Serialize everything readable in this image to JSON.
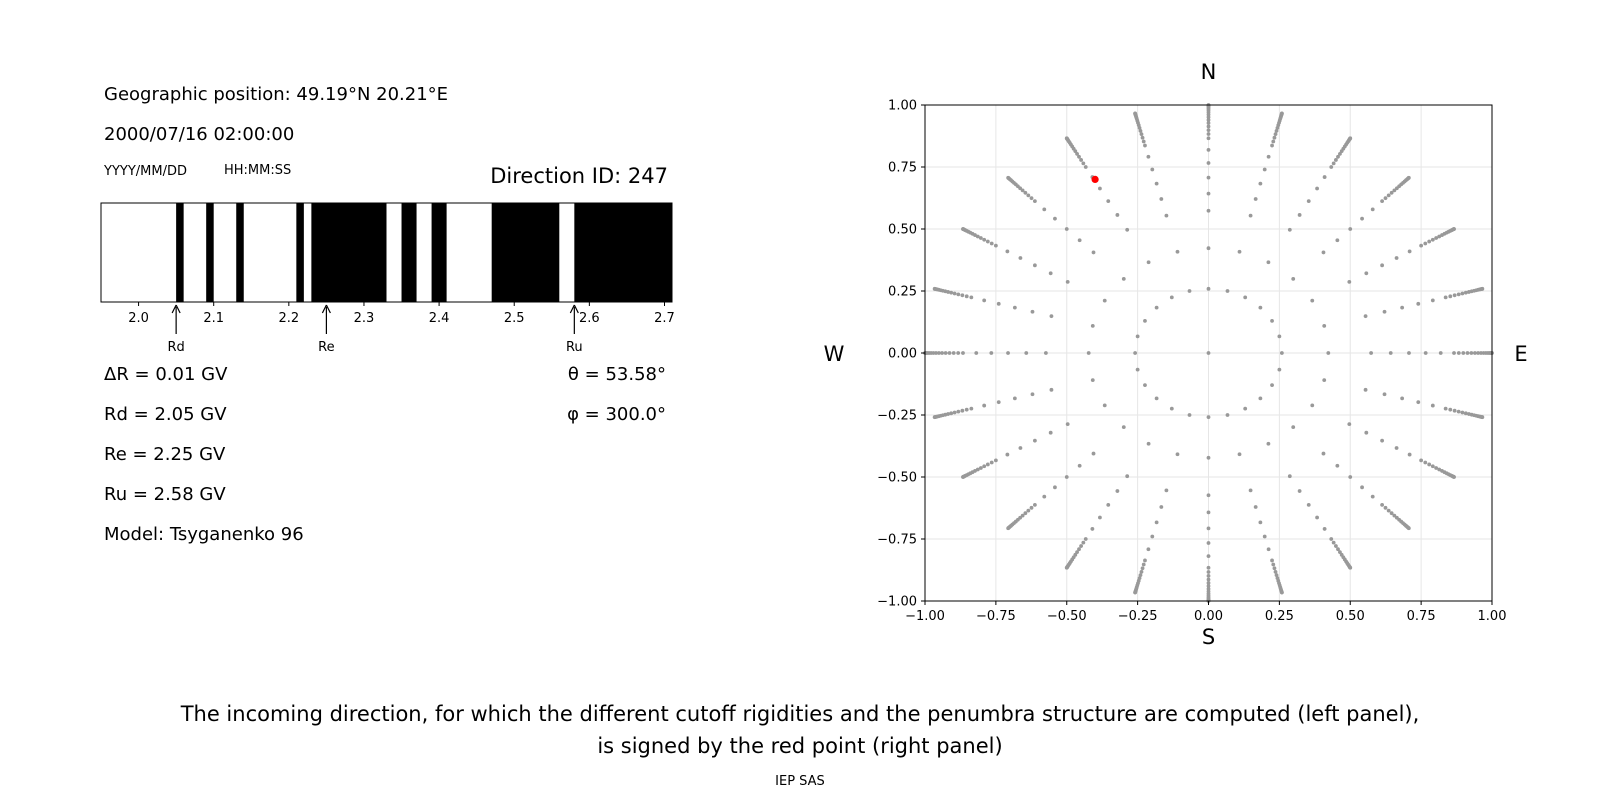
{
  "header": {
    "position": "Geographic position: 49.19°N 20.21°E",
    "datetime": "2000/07/16 02:00:00",
    "date_format": "YYYY/MM/DD",
    "time_format": "HH:MM:SS",
    "direction_id": "Direction ID: 247"
  },
  "params": {
    "delta_r": "ΔR = 0.01 GV",
    "rd": "Rd = 2.05 GV",
    "re": "Re = 2.25 GV",
    "ru": "Ru = 2.58 GV",
    "model": "Model: Tsyganenko 96",
    "theta": "θ = 53.58°",
    "phi": "φ = 300.0°"
  },
  "compass": {
    "north": "N",
    "south": "S",
    "west": "W",
    "east": "E"
  },
  "caption": {
    "line1": "The incoming direction, for which the different cutoff rigidities and the penumbra structure are computed (left panel),",
    "line2": "is signed by the red point (right panel)"
  },
  "footer": "IEP SAS",
  "colors": {
    "allowed": "#ffffff",
    "forbidden": "#000000",
    "grid_point": "#999999",
    "selected": "#ff0000"
  },
  "chart_data": [
    {
      "type": "bar",
      "description_role": "penumbra",
      "xlim": [
        1.95,
        2.71
      ],
      "ticks": [
        2.0,
        2.1,
        2.2,
        2.3,
        2.4,
        2.5,
        2.6,
        2.7
      ],
      "tick_labels": [
        "2.0",
        "2.1",
        "2.2",
        "2.3",
        "2.4",
        "2.5",
        "2.6",
        "2.7"
      ],
      "forbidden_bands": [
        [
          2.05,
          2.06
        ],
        [
          2.09,
          2.1
        ],
        [
          2.13,
          2.14
        ],
        [
          2.21,
          2.22
        ],
        [
          2.23,
          2.33
        ],
        [
          2.35,
          2.37
        ],
        [
          2.39,
          2.41
        ],
        [
          2.47,
          2.56
        ],
        [
          2.58,
          2.71
        ]
      ],
      "markers": [
        {
          "label": "Rd",
          "value": 2.05
        },
        {
          "label": "Re",
          "value": 2.25
        },
        {
          "label": "Ru",
          "value": 2.58
        }
      ]
    },
    {
      "type": "scatter",
      "description_role": "directions",
      "xlim": [
        -1.0,
        1.0
      ],
      "ylim": [
        -1.0,
        1.0
      ],
      "xticks": [
        -1.0,
        -0.75,
        -0.5,
        -0.25,
        0.0,
        0.25,
        0.5,
        0.75,
        1.0
      ],
      "yticks": [
        -1.0,
        -0.75,
        -0.5,
        -0.25,
        0.0,
        0.25,
        0.5,
        0.75,
        1.0
      ],
      "xtick_labels": [
        "−1.00",
        "−0.75",
        "−0.50",
        "−0.25",
        "0.00",
        "0.25",
        "0.50",
        "0.75",
        "1.00"
      ],
      "ytick_labels": [
        "−1.00",
        "−0.75",
        "−0.50",
        "−0.25",
        "0.00",
        "0.25",
        "0.50",
        "0.75",
        "1.00"
      ],
      "grid": true,
      "azimuth_step_deg": 15,
      "zenith_angles_deg": [
        0,
        15,
        25,
        35,
        40,
        45,
        50,
        55,
        60,
        62,
        64,
        66,
        68,
        70,
        72,
        74,
        76,
        78,
        80,
        82,
        84,
        86,
        88,
        90
      ],
      "selected_point": {
        "x": -0.4,
        "y": 0.7
      }
    }
  ]
}
